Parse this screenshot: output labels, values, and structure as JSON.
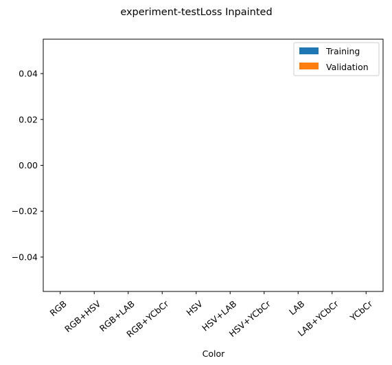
{
  "chart_data": {
    "type": "bar",
    "title": "experiment-testLoss Inpainted",
    "xlabel": "Color",
    "ylabel": "",
    "categories": [
      "RGB",
      "RGB+HSV",
      "RGB+LAB",
      "RGB+YCbCr",
      "HSV",
      "HSV+LAB",
      "HSV+YCbCr",
      "LAB",
      "LAB+YCbCr",
      "YCbCr"
    ],
    "series": [
      {
        "name": "Training",
        "color": "#1f77b4",
        "values": [
          0,
          0,
          0,
          0,
          0,
          0,
          0,
          0,
          0,
          0
        ]
      },
      {
        "name": "Validation",
        "color": "#ff7f0e",
        "values": [
          0,
          0,
          0,
          0,
          0,
          0,
          0,
          0,
          0,
          0
        ]
      }
    ],
    "ylim": [
      -0.055,
      0.055
    ],
    "yticks": [
      0.04,
      0.02,
      0.0,
      -0.02,
      -0.04
    ],
    "ytick_labels": [
      "0.04",
      "0.02",
      "0.00",
      "−0.02",
      "−0.04"
    ],
    "grid": false,
    "legend_position": "top-right",
    "xtick_rotation_deg": 40
  }
}
